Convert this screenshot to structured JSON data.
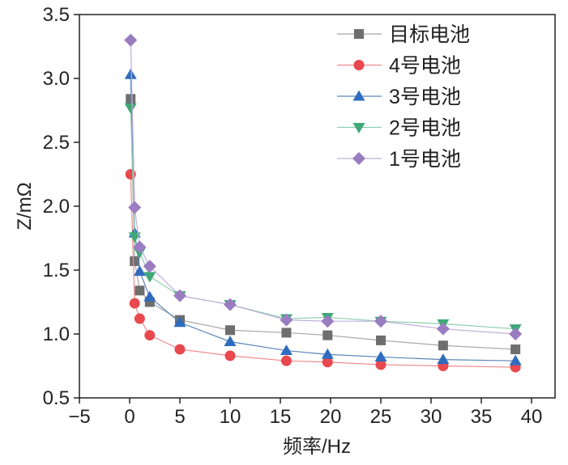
{
  "chart_data": {
    "type": "line",
    "title": "",
    "xlabel": "频率/Hz",
    "ylabel": "Z/mΩ",
    "xlim": [
      -5,
      42.3
    ],
    "ylim": [
      0.5,
      3.5
    ],
    "xticks": [
      "−5",
      "0",
      "5",
      "10",
      "15",
      "20",
      "25",
      "30",
      "35",
      "40"
    ],
    "xtick_values": [
      -5,
      0,
      5,
      10,
      15,
      20,
      25,
      30,
      35,
      40
    ],
    "yticks": [
      "0.5",
      "1.0",
      "1.5",
      "2.0",
      "2.5",
      "3.0",
      "3.5"
    ],
    "ytick_values": [
      0.5,
      1.0,
      1.5,
      2.0,
      2.5,
      3.0,
      3.5
    ],
    "grid": false,
    "legend_position": "top-right",
    "x": [
      0.1,
      0.5,
      1,
      2,
      5,
      10,
      15.6,
      19.7,
      25,
      31.2,
      38.4
    ],
    "series": [
      {
        "name": "目标电池",
        "marker": "square",
        "color": "#6e6e6e",
        "line_color": "#a8a8a8",
        "values": [
          2.84,
          1.57,
          1.34,
          1.25,
          1.11,
          1.03,
          1.01,
          0.99,
          0.95,
          0.91,
          0.88
        ]
      },
      {
        "name": "4号电池",
        "marker": "circle",
        "color": "#e8484e",
        "line_color": "#ef8a8d",
        "values": [
          2.25,
          1.24,
          1.12,
          0.99,
          0.88,
          0.83,
          0.79,
          0.78,
          0.76,
          0.75,
          0.74
        ]
      },
      {
        "name": "3号电池",
        "marker": "triangle-up",
        "color": "#2f6cbf",
        "line_color": "#5a86b8",
        "values": [
          3.03,
          1.79,
          1.49,
          1.29,
          1.09,
          0.94,
          0.87,
          0.84,
          0.82,
          0.8,
          0.79
        ]
      },
      {
        "name": "2号电池",
        "marker": "triangle-down",
        "color": "#3fa876",
        "line_color": "#8ccfae",
        "values": [
          2.77,
          1.76,
          1.64,
          1.45,
          1.3,
          1.23,
          1.12,
          1.13,
          1.1,
          1.08,
          1.04
        ]
      },
      {
        "name": "1号电池",
        "marker": "diamond",
        "color": "#9a7cc0",
        "line_color": "#bfaedb",
        "values": [
          3.3,
          1.99,
          1.68,
          1.53,
          1.3,
          1.23,
          1.11,
          1.1,
          1.1,
          1.04,
          1.0
        ]
      }
    ]
  }
}
